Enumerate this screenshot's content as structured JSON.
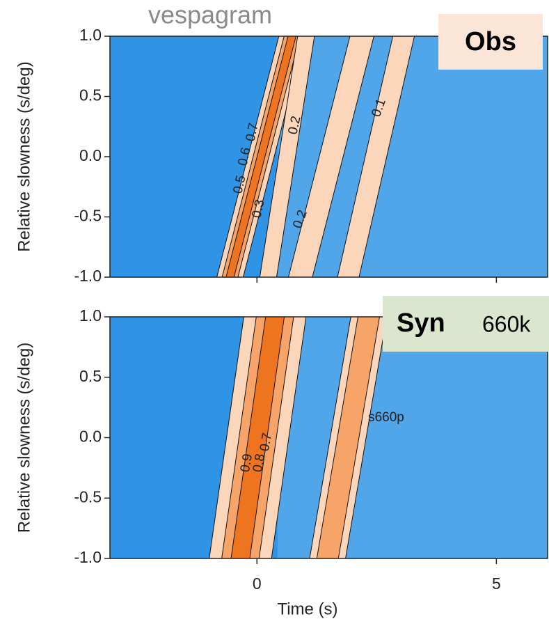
{
  "chart_data": [
    {
      "type": "heatmap",
      "title": "vespagram",
      "label": "Obs",
      "ylabel": "Relative slowness (s/deg)",
      "xlim": [
        -3.07,
        6.07
      ],
      "ylim": [
        -1,
        1
      ],
      "xticks": [
        0,
        5
      ],
      "yticks": [
        {
          "value": 1,
          "label": "1.0"
        },
        0.5,
        {
          "value": 0,
          "label": "0.0"
        },
        -0.5,
        {
          "value": -1,
          "label": "-1.0"
        }
      ],
      "ridges": [
        {
          "t_top": 0.74,
          "t_bottom": -0.57,
          "width": 0.55,
          "amplitude": 0.8
        },
        {
          "t_top": 1.03,
          "t_bottom": 0.23,
          "width": 0.35,
          "amplitude": 0.3
        },
        {
          "t_top": 2.2,
          "t_bottom": 0.9,
          "width": 0.5,
          "amplitude": 0.3
        },
        {
          "t_top": 3.07,
          "t_bottom": 1.9,
          "width": 0.45,
          "amplitude": 0.2
        }
      ],
      "contour_labels": [
        "0.7",
        "0.6",
        "0.5",
        "0.3",
        "0.2",
        "0.2",
        "0.1"
      ]
    },
    {
      "type": "heatmap",
      "label": "Syn",
      "sublabel": "660k",
      "ylabel": "Relative slowness (s/deg)",
      "xlabel": "Time (s)",
      "xlim": [
        -3.07,
        6.07
      ],
      "ylim": [
        -1,
        1
      ],
      "xticks": [
        0,
        5
      ],
      "yticks": [
        {
          "value": 1,
          "label": "1.0"
        },
        0.5,
        {
          "value": 0,
          "label": "0.0"
        },
        -0.5,
        {
          "value": -1,
          "label": "-1.0"
        }
      ],
      "ridges": [
        {
          "t_top": 0.38,
          "t_bottom": -0.35,
          "width": 1.3,
          "amplitude": 1.0
        },
        {
          "t_top": 2.34,
          "t_bottom": 1.47,
          "width": 0.75,
          "amplitude": 0.5
        }
      ],
      "contour_labels": [
        "s660p",
        "0.7",
        "0.8",
        "0.9"
      ]
    }
  ]
}
